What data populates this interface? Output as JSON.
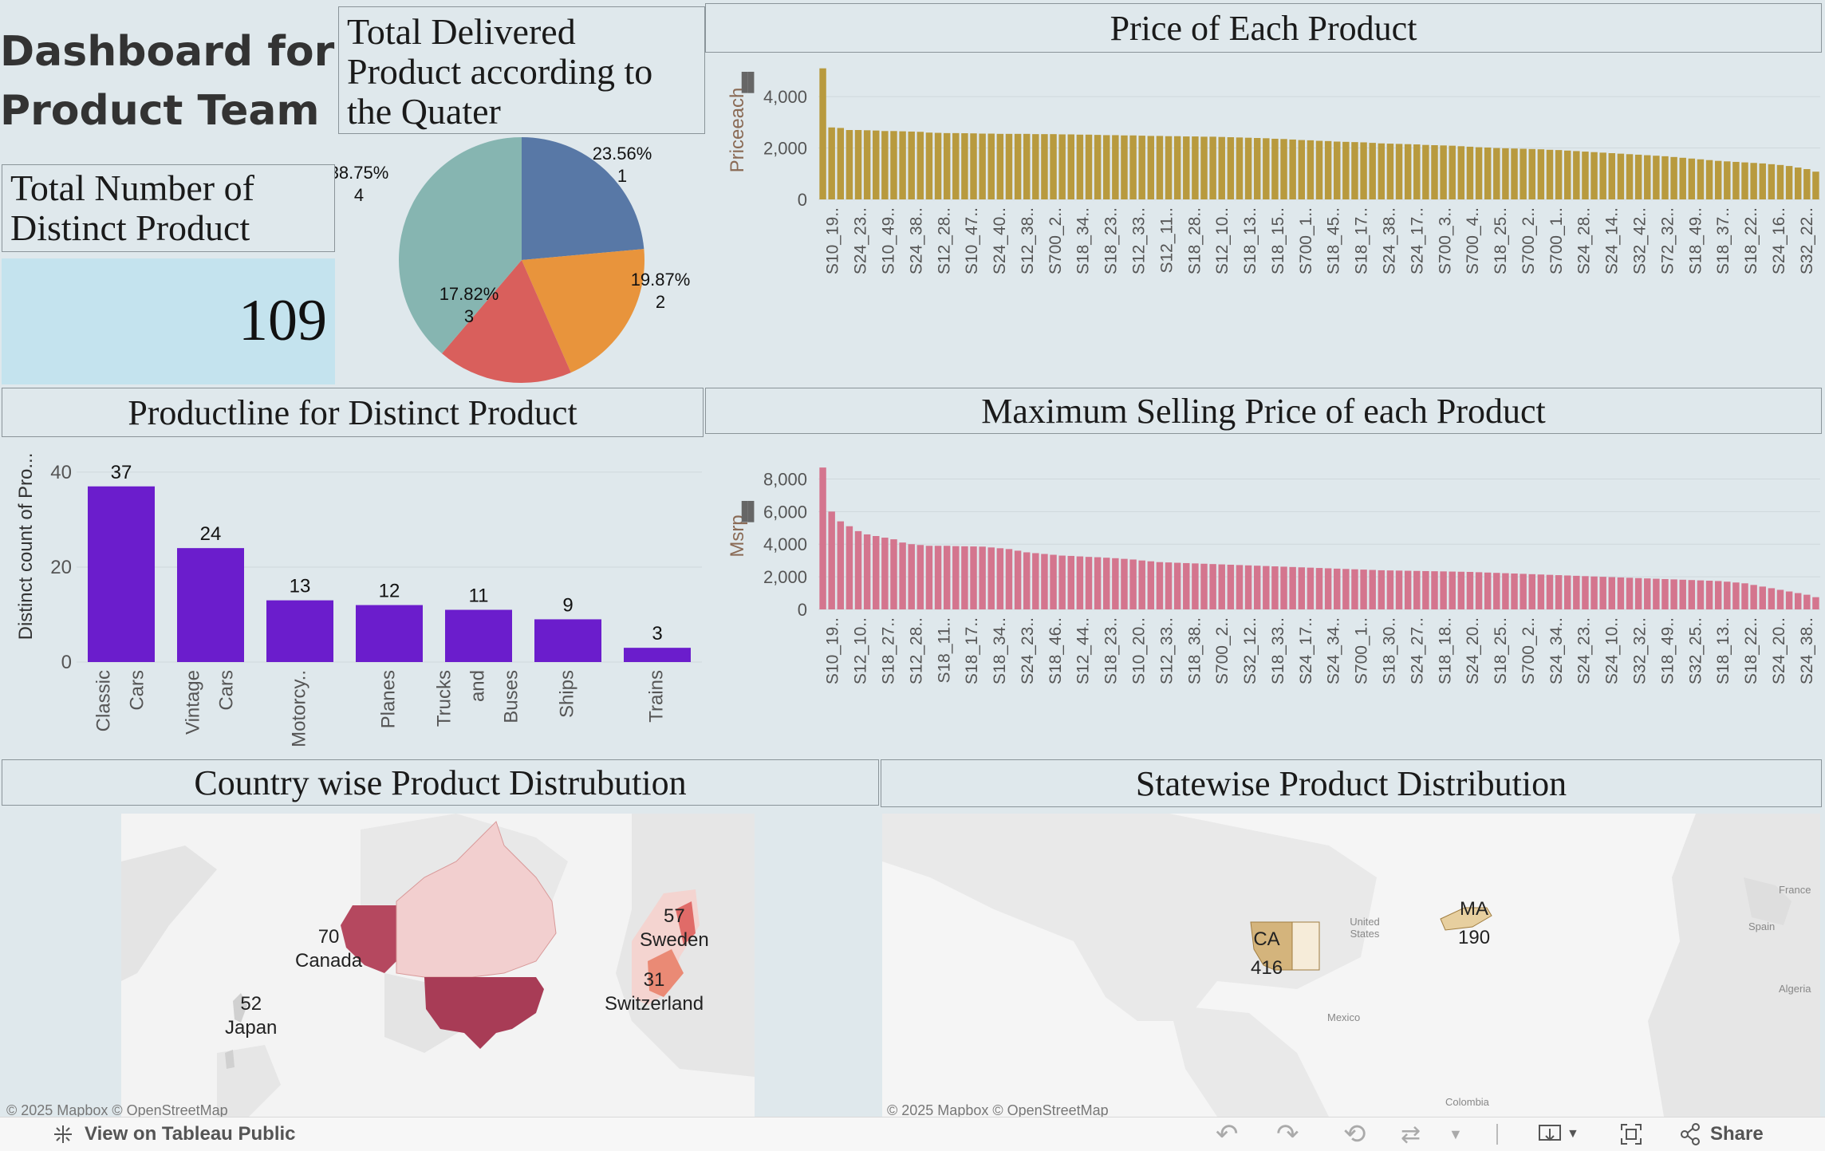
{
  "dashboard": {
    "title_line1": "Dashboard for",
    "title_line2": "Product Team"
  },
  "kpi": {
    "title_line1": "Total Number of",
    "title_line2": "Distinct Product",
    "value": "109"
  },
  "pie": {
    "title_lines": [
      "Total Delivered",
      "Product according to",
      "the Quater"
    ],
    "chart_data": {
      "type": "pie",
      "slices": [
        {
          "quarter": "1",
          "percent": 23.56,
          "label": "23.56%",
          "color": "#5878a6"
        },
        {
          "quarter": "2",
          "percent": 19.87,
          "label": "19.87%",
          "color": "#e8943c"
        },
        {
          "quarter": "3",
          "percent": 17.82,
          "label": "17.82%",
          "color": "#d95f5c"
        },
        {
          "quarter": "4",
          "percent": 38.75,
          "label": "38.75%",
          "color": "#86b5b1"
        }
      ]
    }
  },
  "price_chart": {
    "title": "Price of Each Product",
    "ylabel": "Priceeach",
    "color": "#b89a3e",
    "yticks": [
      "0",
      "2,000",
      "4,000"
    ],
    "ylim": [
      0,
      5400
    ],
    "xlabels": [
      "S10_19..",
      "S24_23..",
      "S10_49..",
      "S24_38..",
      "S12_28..",
      "S10_47..",
      "S24_40..",
      "S12_38..",
      "S700_2..",
      "S18_34..",
      "S18_23..",
      "S12_33..",
      "S12_11..",
      "S18_28..",
      "S12_10..",
      "S18_13..",
      "S18_15..",
      "S700_1..",
      "S18_45..",
      "S18_17..",
      "S24_38..",
      "S24_17..",
      "S700_3..",
      "S700_4..",
      "S18_25..",
      "S700_2..",
      "S700_1..",
      "S24_28..",
      "S24_14..",
      "S32_42..",
      "S72_32..",
      "S18_49..",
      "S18_37..",
      "S18_22..",
      "S24_16..",
      "S32_22.."
    ],
    "values": [
      5100,
      2800,
      2780,
      2700,
      2700,
      2690,
      2680,
      2660,
      2660,
      2650,
      2640,
      2630,
      2600,
      2590,
      2580,
      2580,
      2575,
      2570,
      2560,
      2560,
      2550,
      2550,
      2550,
      2550,
      2540,
      2540,
      2540,
      2530,
      2530,
      2520,
      2520,
      2510,
      2500,
      2500,
      2490,
      2490,
      2480,
      2470,
      2470,
      2460,
      2460,
      2450,
      2450,
      2440,
      2440,
      2430,
      2420,
      2410,
      2400,
      2390,
      2380,
      2360,
      2350,
      2330,
      2310,
      2300,
      2280,
      2270,
      2250,
      2240,
      2230,
      2220,
      2200,
      2180,
      2170,
      2160,
      2150,
      2140,
      2120,
      2110,
      2100,
      2090,
      2070,
      2050,
      2030,
      2020,
      2000,
      1990,
      1980,
      1970,
      1960,
      1950,
      1930,
      1920,
      1900,
      1880,
      1860,
      1840,
      1820,
      1800,
      1780,
      1760,
      1740,
      1720,
      1700,
      1680,
      1650,
      1620,
      1590,
      1560,
      1530,
      1500,
      1480,
      1460,
      1440,
      1420,
      1400,
      1370,
      1340,
      1300,
      1240,
      1180,
      1080
    ]
  },
  "msrp_chart": {
    "title": "Maximum Selling Price of each Product",
    "ylabel": "Msrp",
    "color": "#d4758e",
    "yticks": [
      "0",
      "2,000",
      "4,000",
      "6,000",
      "8,000"
    ],
    "ylim": [
      0,
      9000
    ],
    "xlabels": [
      "S10_19..",
      "S12_10..",
      "S18_27..",
      "S12_28..",
      "S18_11..",
      "S18_17..",
      "S18_34..",
      "S24_23..",
      "S18_46..",
      "S12_44..",
      "S18_23..",
      "S10_20..",
      "S12_33..",
      "S18_38..",
      "S700_2..",
      "S32_12..",
      "S18_33..",
      "S24_17..",
      "S24_34..",
      "S700_1..",
      "S18_30..",
      "S24_27..",
      "S18_18..",
      "S24_20..",
      "S18_25..",
      "S700_2..",
      "S24_34..",
      "S24_23..",
      "S24_10..",
      "S32_32..",
      "S18_49..",
      "S32_25..",
      "S18_13..",
      "S18_22..",
      "S24_20..",
      "S24_38.."
    ],
    "values": [
      8700,
      6000,
      5400,
      5100,
      4800,
      4600,
      4500,
      4400,
      4300,
      4100,
      4000,
      3950,
      3900,
      3900,
      3900,
      3880,
      3870,
      3860,
      3850,
      3800,
      3750,
      3700,
      3600,
      3500,
      3450,
      3400,
      3350,
      3300,
      3280,
      3250,
      3220,
      3200,
      3170,
      3140,
      3100,
      3060,
      3000,
      2950,
      2900,
      2880,
      2860,
      2840,
      2820,
      2800,
      2780,
      2760,
      2740,
      2720,
      2700,
      2680,
      2660,
      2640,
      2620,
      2600,
      2580,
      2560,
      2540,
      2520,
      2500,
      2480,
      2460,
      2440,
      2420,
      2400,
      2390,
      2380,
      2370,
      2360,
      2350,
      2340,
      2330,
      2320,
      2310,
      2300,
      2280,
      2260,
      2240,
      2220,
      2200,
      2180,
      2160,
      2140,
      2120,
      2100,
      2080,
      2060,
      2040,
      2020,
      2000,
      1980,
      1960,
      1940,
      1920,
      1900,
      1880,
      1860,
      1840,
      1820,
      1800,
      1780,
      1760,
      1740,
      1700,
      1650,
      1600,
      1500,
      1400,
      1300,
      1200,
      1100,
      1000,
      900,
      750
    ]
  },
  "productline_chart": {
    "title": "Productline for Distinct Product",
    "ylabel": "Distinct count of Pro...",
    "color": "#6b1dcc",
    "yticks": [
      "0",
      "20",
      "40"
    ],
    "ylim": [
      0,
      42
    ],
    "categories": [
      {
        "lines": [
          "Classic",
          "Cars"
        ],
        "value": 37,
        "label": "37"
      },
      {
        "lines": [
          "Vintage",
          "Cars"
        ],
        "value": 24,
        "label": "24"
      },
      {
        "lines": [
          "Motorcy.."
        ],
        "value": 13,
        "label": "13"
      },
      {
        "lines": [
          "Planes"
        ],
        "value": 12,
        "label": "12"
      },
      {
        "lines": [
          "Trucks",
          "and",
          "Buses"
        ],
        "value": 11,
        "label": "11"
      },
      {
        "lines": [
          "Ships"
        ],
        "value": 9,
        "label": "9"
      },
      {
        "lines": [
          "Trains"
        ],
        "value": 3,
        "label": "3"
      }
    ]
  },
  "country_map": {
    "title": "Country wise Product Distrubution",
    "attribution": "© 2025 Mapbox  © OpenStreetMap",
    "labels": [
      {
        "name": "Canada",
        "value": "70"
      },
      {
        "name": "Japan",
        "value": "52"
      },
      {
        "name": "Sweden",
        "value": "57"
      },
      {
        "name": "Switzerland",
        "value": "31"
      }
    ]
  },
  "state_map": {
    "title": "Statewise Product Distribution",
    "attribution": "© 2025 Mapbox  © OpenStreetMap",
    "labels": [
      {
        "name": "CA",
        "value": "416"
      },
      {
        "name": "MA",
        "value": "190"
      }
    ],
    "basemap_labels": [
      "United States",
      "Mexico",
      "Colombia",
      "France",
      "Spain",
      "Algeria"
    ]
  },
  "footer": {
    "view_label": "View on Tableau Public",
    "share_label": "Share"
  }
}
